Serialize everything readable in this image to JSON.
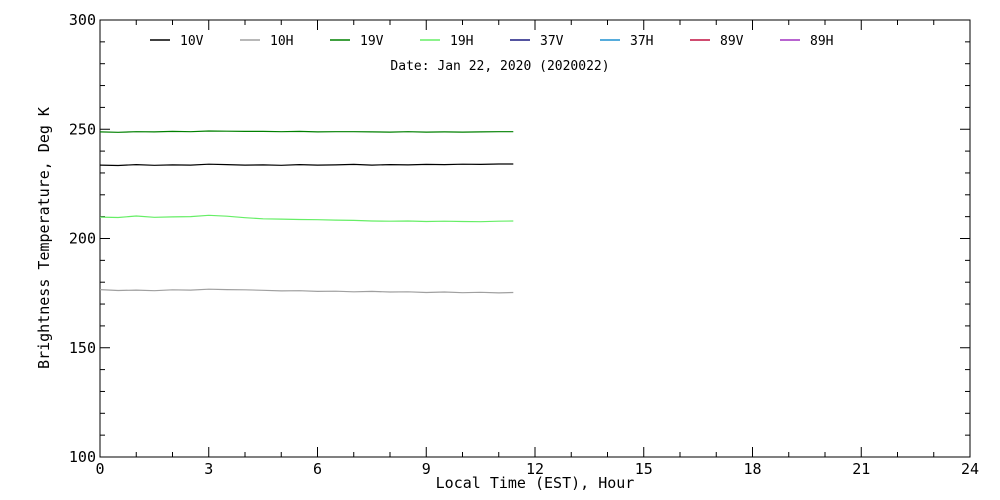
{
  "chart_data": {
    "type": "line",
    "xlabel": "Local Time (EST), Hour",
    "ylabel": "Brightness Temperature, Deg K",
    "subtitle": "Date: Jan 22, 2020 (2020022)",
    "xlim": [
      0,
      24
    ],
    "ylim": [
      100,
      300
    ],
    "x_ticks": [
      0,
      3,
      6,
      9,
      12,
      15,
      18,
      21,
      24
    ],
    "y_ticks": [
      100,
      150,
      200,
      250,
      300
    ],
    "grid": false,
    "legend_position": "top",
    "series": [
      {
        "name": "10V",
        "color": "#000000",
        "x": [
          0,
          0.5,
          1,
          1.5,
          2,
          2.5,
          3,
          3.5,
          4,
          4.5,
          5,
          5.5,
          6,
          6.5,
          7,
          7.5,
          8,
          8.5,
          9,
          9.5,
          10,
          10.5,
          11,
          11.4
        ],
        "y": [
          233.6,
          233.4,
          233.8,
          233.5,
          233.7,
          233.6,
          234.0,
          233.8,
          233.6,
          233.7,
          233.5,
          233.8,
          233.6,
          233.7,
          233.9,
          233.6,
          233.8,
          233.7,
          233.9,
          233.8,
          234.0,
          233.9,
          234.1,
          234.1
        ]
      },
      {
        "name": "10H",
        "color": "#a0a0a0",
        "x": [
          0,
          0.5,
          1,
          1.5,
          2,
          2.5,
          3,
          3.5,
          4,
          4.5,
          5,
          5.5,
          6,
          6.5,
          7,
          7.5,
          8,
          8.5,
          9,
          9.5,
          10,
          10.5,
          11,
          11.4
        ],
        "y": [
          176.6,
          176.2,
          176.4,
          176.1,
          176.5,
          176.4,
          176.8,
          176.6,
          176.5,
          176.3,
          176.0,
          176.1,
          175.8,
          175.9,
          175.6,
          175.8,
          175.5,
          175.6,
          175.3,
          175.5,
          175.2,
          175.4,
          175.1,
          175.3
        ]
      },
      {
        "name": "19V",
        "color": "#008000",
        "x": [
          0,
          0.5,
          1,
          1.5,
          2,
          2.5,
          3,
          3.5,
          4,
          4.5,
          5,
          5.5,
          6,
          6.5,
          7,
          7.5,
          8,
          8.5,
          9,
          9.5,
          10,
          10.5,
          11,
          11.4
        ],
        "y": [
          248.8,
          248.6,
          248.9,
          248.8,
          249.0,
          248.9,
          249.2,
          249.1,
          249.0,
          249.0,
          248.9,
          249.0,
          248.8,
          248.9,
          248.9,
          248.8,
          248.7,
          248.9,
          248.7,
          248.8,
          248.7,
          248.8,
          248.9,
          248.9
        ]
      },
      {
        "name": "19H",
        "color": "#66ee66",
        "x": [
          0,
          0.5,
          1,
          1.5,
          2,
          2.5,
          3,
          3.5,
          4,
          4.5,
          5,
          5.5,
          6,
          6.5,
          7,
          7.5,
          8,
          8.5,
          9,
          9.5,
          10,
          10.5,
          11,
          11.4
        ],
        "y": [
          209.8,
          209.6,
          210.3,
          209.7,
          209.9,
          210.0,
          210.6,
          210.2,
          209.5,
          209.0,
          208.9,
          208.7,
          208.6,
          208.4,
          208.3,
          208.0,
          207.9,
          208.0,
          207.8,
          207.9,
          207.8,
          207.7,
          207.9,
          208.0
        ]
      },
      {
        "name": "37V",
        "color": "#1a1a80",
        "x": [],
        "y": []
      },
      {
        "name": "37H",
        "color": "#1e90d0",
        "x": [],
        "y": []
      },
      {
        "name": "89V",
        "color": "#c01040",
        "x": [],
        "y": []
      },
      {
        "name": "89H",
        "color": "#a030c0",
        "x": [],
        "y": []
      }
    ]
  }
}
